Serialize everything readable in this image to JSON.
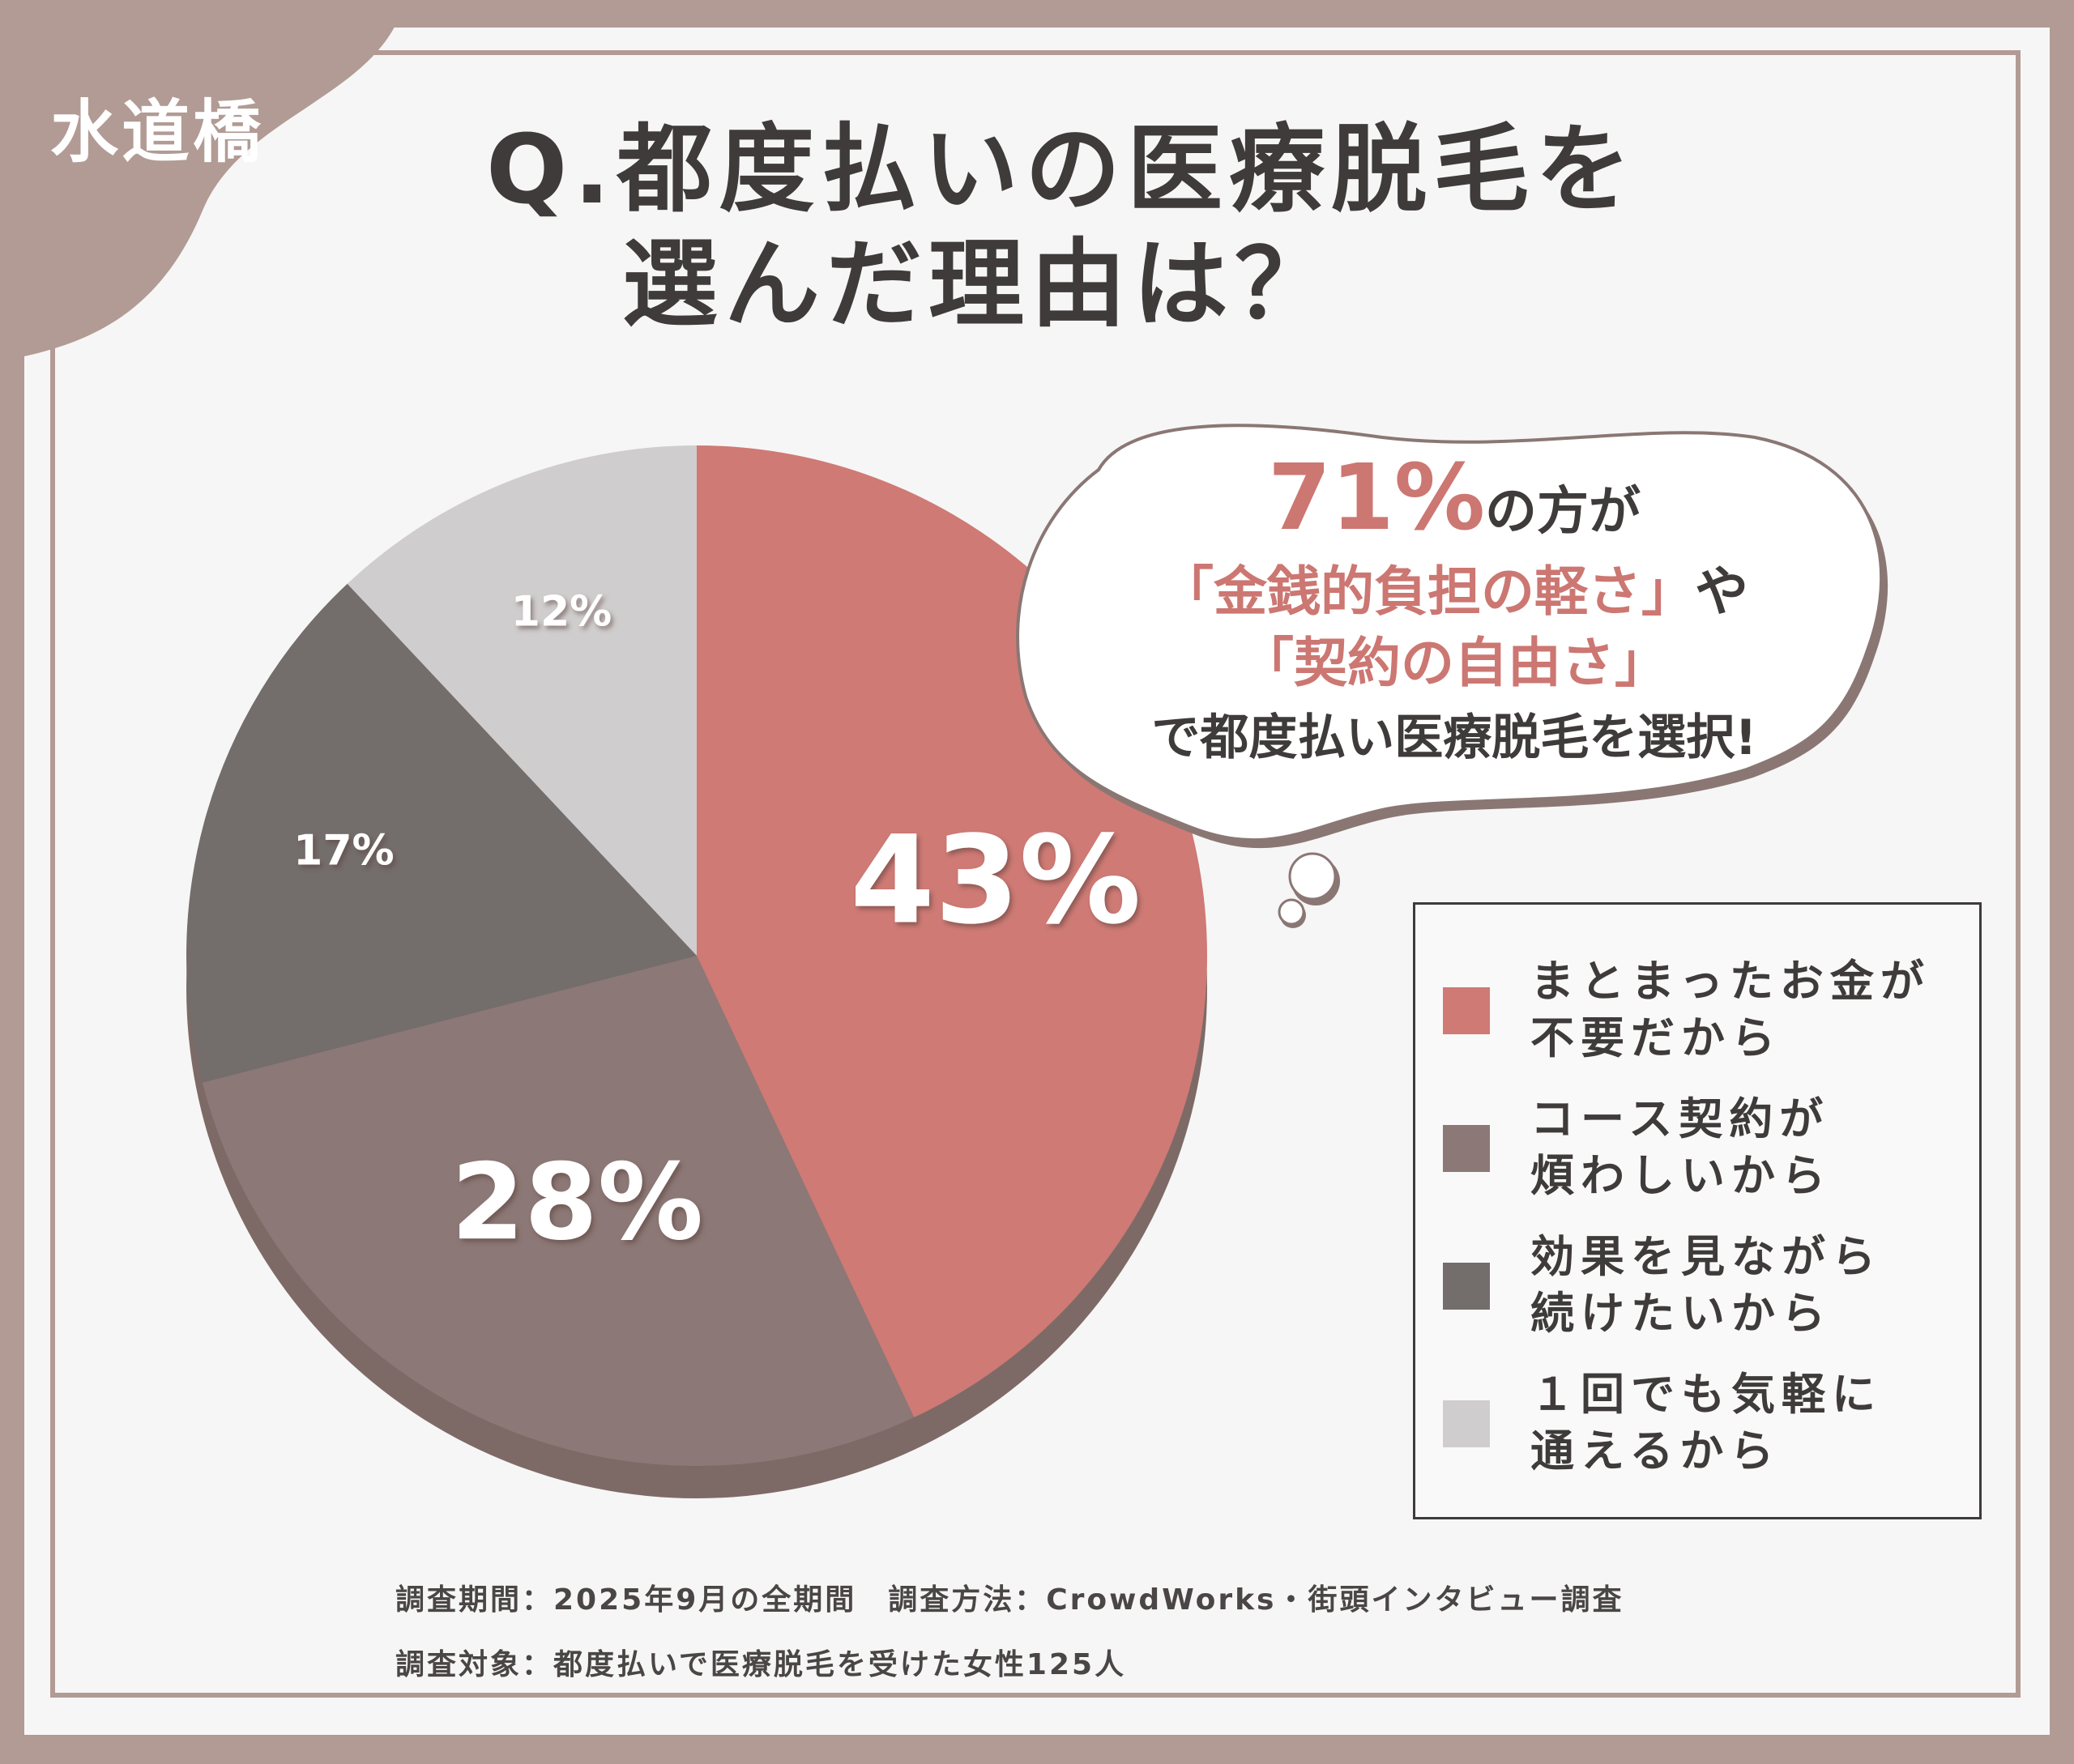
{
  "location": "水道橋",
  "title": {
    "line1": "Q.都度払いの医療脱毛を",
    "line2": "選んだ理由は？"
  },
  "callout": {
    "percent": "71%",
    "line1_suffix": "の方が",
    "line2": "「金銭的負担の軽さ」",
    "line2_tail": "や",
    "line3": "「契約の自由さ」",
    "line4": "で都度払い医療脱毛を選択!"
  },
  "legend": [
    {
      "label": "まとまったお金が\n不要だから",
      "color": "#cf7a75"
    },
    {
      "label": "コース契約が\n煩わしいから",
      "color": "#8c7876"
    },
    {
      "label": "効果を見ながら\n続けたいから",
      "color": "#736d6c"
    },
    {
      "label": "１回でも気軽に\n通えるから",
      "color": "#cfcdcd"
    }
  ],
  "footnote": {
    "line1": "調査期間：2025年9月の全期間　調査方法：CrowdWorks・街頭インタビュー調査",
    "line2": "調査対象：都度払いで医療脱毛を受けた女性125人"
  },
  "chart_data": {
    "type": "pie",
    "categories": [
      "まとまったお金が不要だから",
      "コース契約が煩わしいから",
      "効果を見ながら続けたいから",
      "１回でも気軽に通えるから"
    ],
    "values": [
      43,
      28,
      17,
      12
    ],
    "labels": [
      "43%",
      "28%",
      "17%",
      "12%"
    ],
    "colors": [
      "#cf7a75",
      "#8c7876",
      "#736d6c",
      "#cfcdcd"
    ],
    "title": "Q.都度払いの医療脱毛を選んだ理由は？",
    "legend_position": "bottom-right"
  }
}
